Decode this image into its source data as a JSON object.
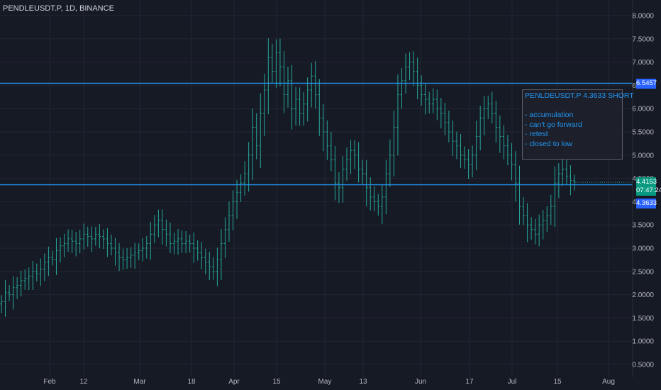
{
  "title": "PENDLEUSDT.P, 1D, BINANCE",
  "note": {
    "heading": "PENLDEUSDT.P 4.3633 SHORT",
    "lines": [
      "- accumulation",
      "- can't go forward",
      "- retest",
      "- closed to low"
    ]
  },
  "price_tags": {
    "upper_level": "6.5457",
    "current_price": "4.4153",
    "countdown": "07:47:24",
    "lower_level": "4.3633"
  },
  "colors": {
    "background": "#161a25",
    "candle": "#26a69a",
    "level_line": "#2196f3",
    "grid": "#232632",
    "axis_text": "#b2b5be"
  },
  "chart_data": {
    "type": "ohlc",
    "title": "PENDLEUSDT.P, 1D, BINANCE",
    "ylim": [
      0.3,
      8.3
    ],
    "y_ticks": [
      "8.0000",
      "7.5000",
      "7.0000",
      "6.5000",
      "6.0000",
      "5.5000",
      "5.0000",
      "4.5000",
      "4.0000",
      "3.5000",
      "3.0000",
      "2.5000",
      "2.0000",
      "1.5000",
      "1.0000",
      "0.5000"
    ],
    "x_ticks": [
      "Feb",
      "12",
      "Mar",
      "18",
      "Apr",
      "15",
      "May",
      "13",
      "Jun",
      "17",
      "Jul",
      "15",
      "Aug"
    ],
    "horizontal_levels": [
      6.5457,
      4.3633
    ],
    "current_price": 4.4153,
    "close_series": [
      1.85,
      2.05,
      2.0,
      2.15,
      2.2,
      2.3,
      2.35,
      2.4,
      2.5,
      2.45,
      2.55,
      2.7,
      2.8,
      2.75,
      2.95,
      3.05,
      3.1,
      3.2,
      3.15,
      3.1,
      3.2,
      3.3,
      3.25,
      3.2,
      3.3,
      3.25,
      3.2,
      3.1,
      3.0,
      2.9,
      2.8,
      2.75,
      2.8,
      2.85,
      2.9,
      2.95,
      3.0,
      3.1,
      3.3,
      3.5,
      3.6,
      3.4,
      3.3,
      3.1,
      3.15,
      3.2,
      3.1,
      3.15,
      3.1,
      3.0,
      2.9,
      2.8,
      2.7,
      2.6,
      2.5,
      2.75,
      3.1,
      3.4,
      3.7,
      4.0,
      4.2,
      4.4,
      4.6,
      5.0,
      5.6,
      5.2,
      5.9,
      6.4,
      7.1,
      6.8,
      7.2,
      6.9,
      6.3,
      6.6,
      6.0,
      6.2,
      5.9,
      6.1,
      6.4,
      6.7,
      6.3,
      5.8,
      5.5,
      5.2,
      4.9,
      4.4,
      4.3,
      4.7,
      4.9,
      5.1,
      5.0,
      4.7,
      4.6,
      4.3,
      4.1,
      4.0,
      3.9,
      4.1,
      4.6,
      5.0,
      5.6,
      6.3,
      6.6,
      6.9,
      7.0,
      6.8,
      6.5,
      6.3,
      6.2,
      6.1,
      6.2,
      6.0,
      5.9,
      5.7,
      5.5,
      5.3,
      5.2,
      5.0,
      4.9,
      4.8,
      5.0,
      5.4,
      5.8,
      6.0,
      6.1,
      5.9,
      5.6,
      5.4,
      5.2,
      5.0,
      4.8,
      4.4,
      3.9,
      3.7,
      3.5,
      3.4,
      3.3,
      3.5,
      3.6,
      3.7,
      3.9,
      4.4,
      4.6,
      4.7,
      4.55,
      4.45,
      4.42
    ]
  }
}
